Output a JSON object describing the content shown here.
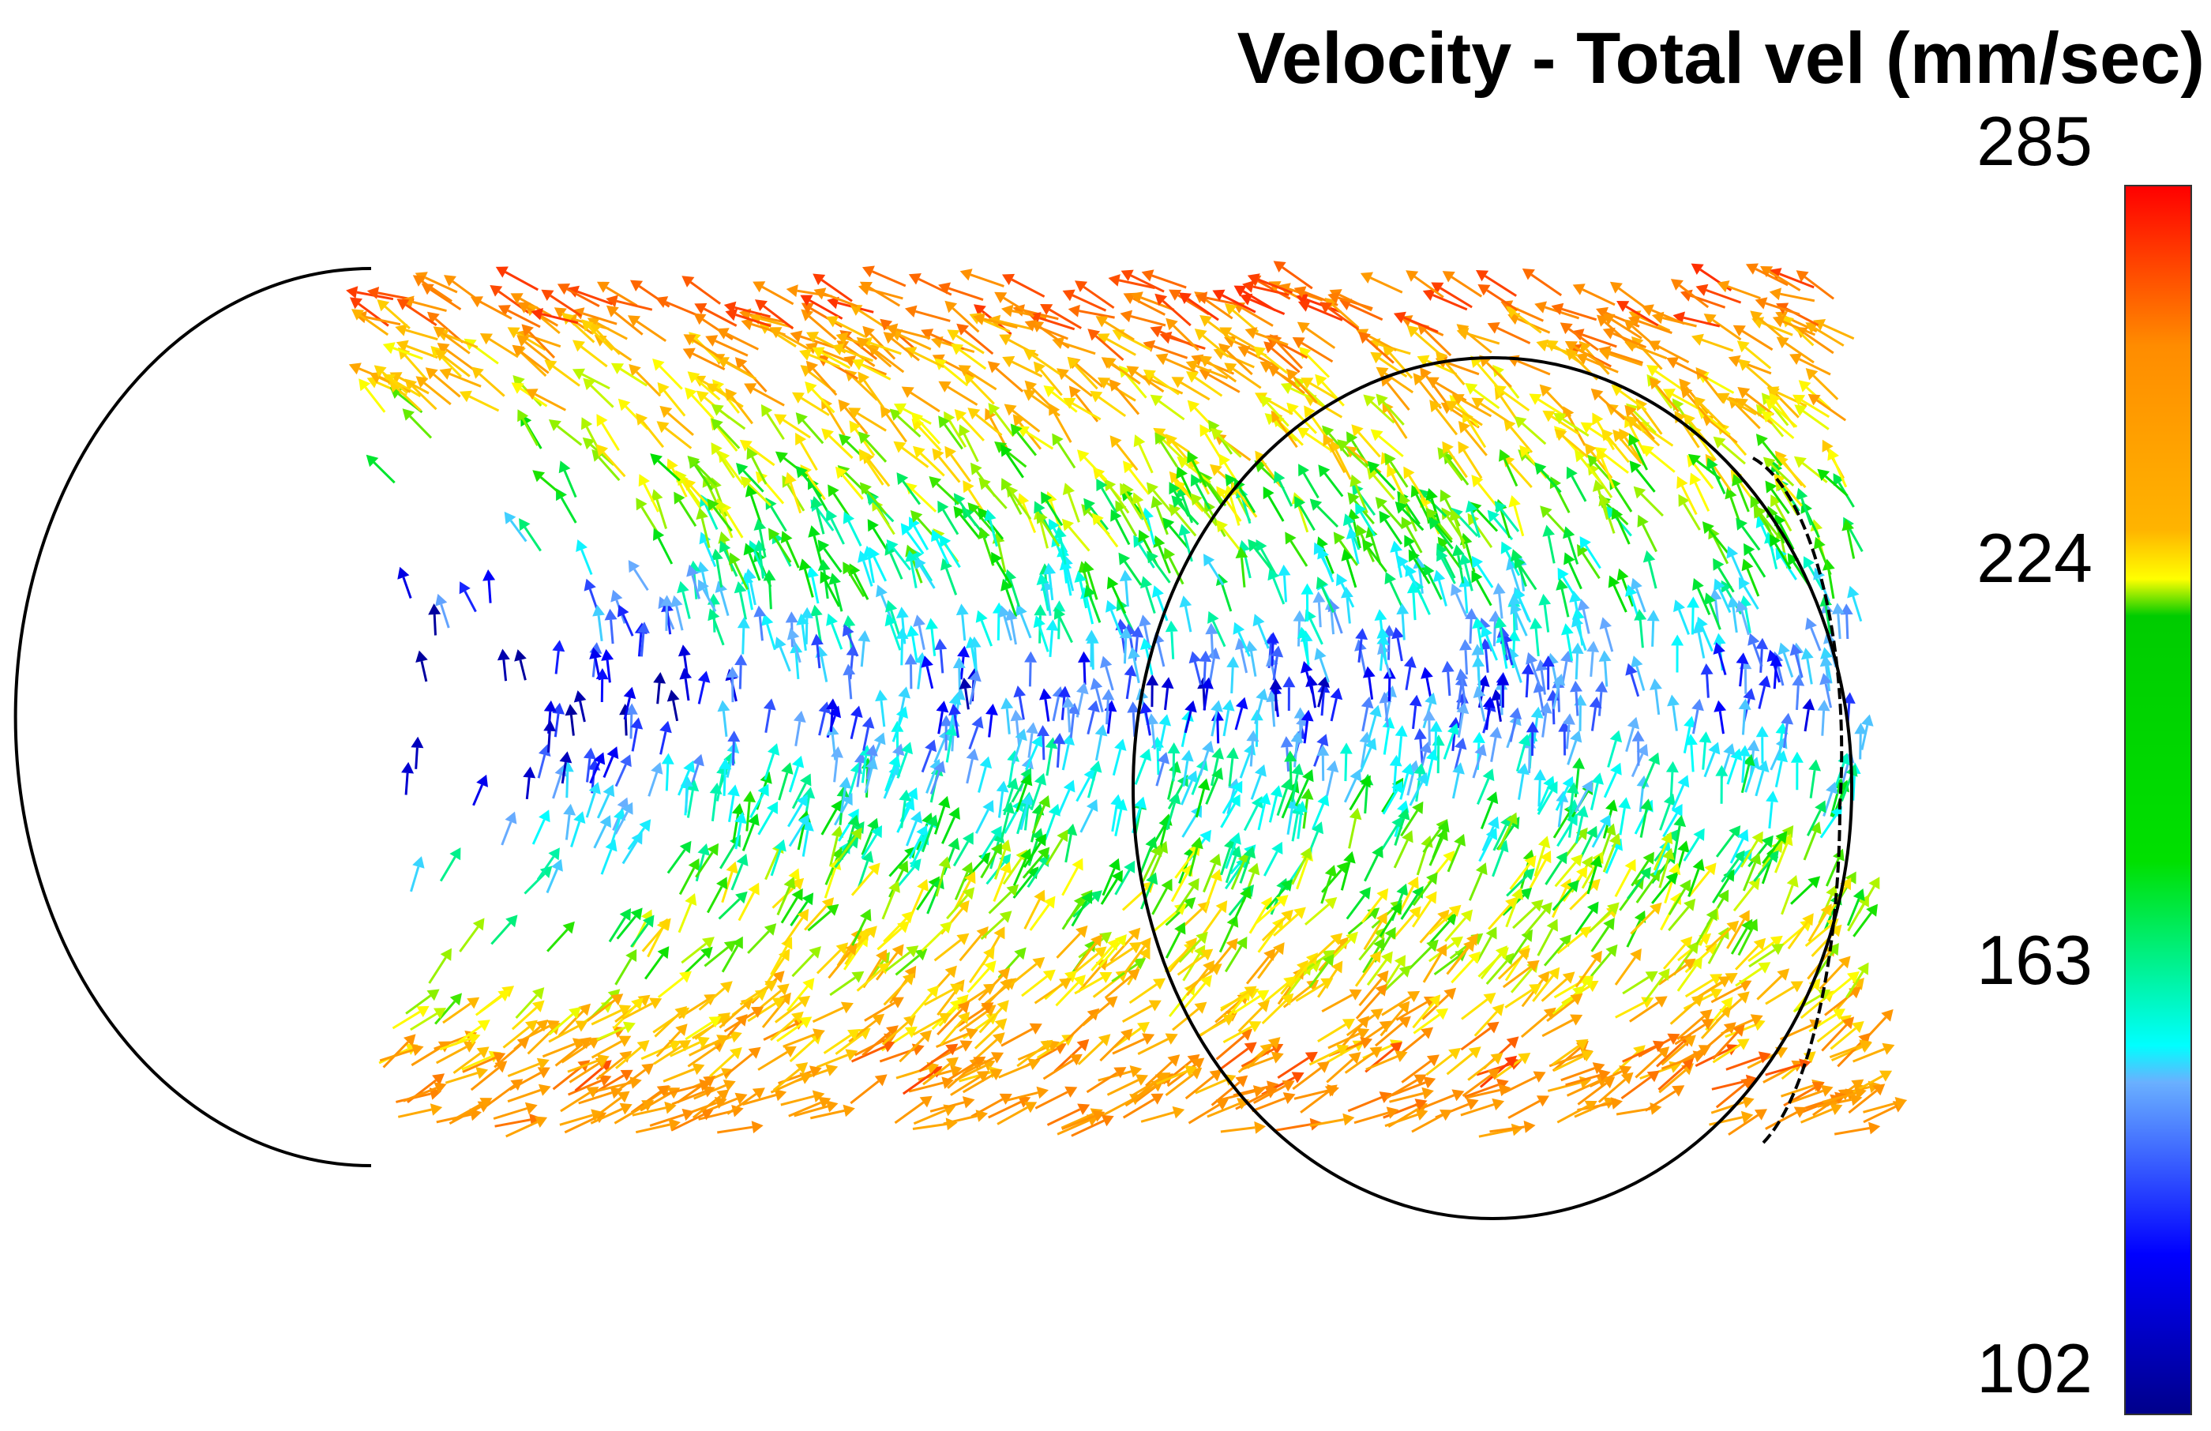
{
  "title": "Velocity - Total vel (mm/sec)",
  "colorbar": {
    "max_label": "285",
    "tick_2": "224",
    "tick_3": "163",
    "min_label": "102",
    "range": [
      102,
      285
    ],
    "colormap": [
      "#00008b",
      "#0000ff",
      "#6ab0ff",
      "#00ffff",
      "#00e000",
      "#ffff00",
      "#ffb400",
      "#ff8c00",
      "#ff0000"
    ]
  }
}
